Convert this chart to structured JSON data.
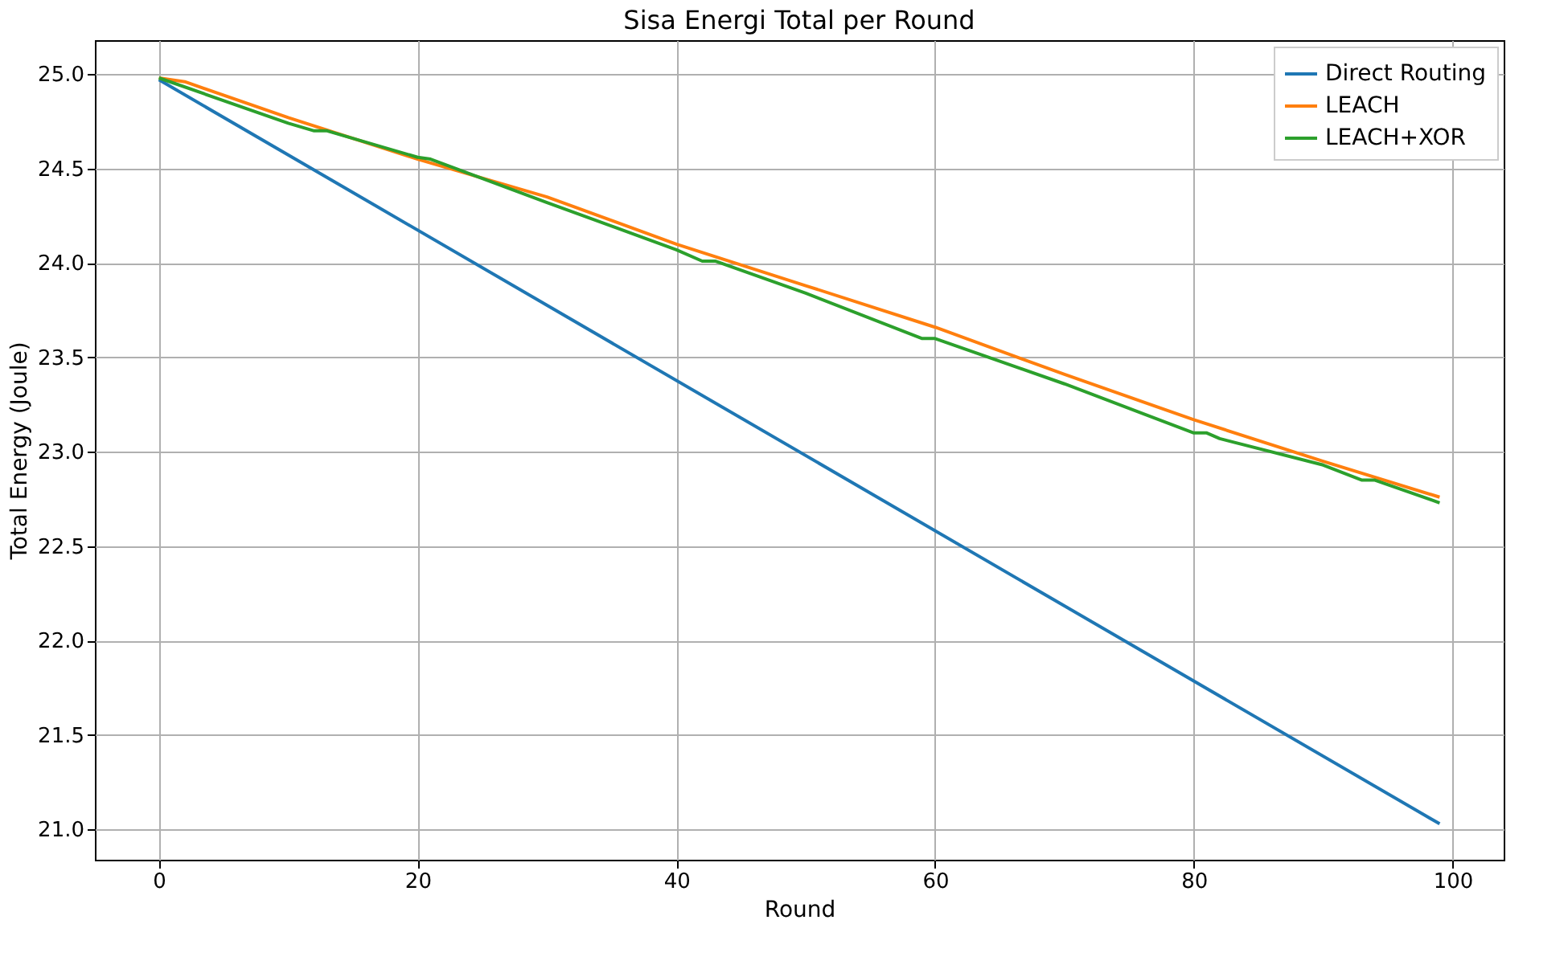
{
  "chart_data": {
    "type": "line",
    "title": "Sisa Energi Total per Round",
    "xlabel": "Round",
    "ylabel": "Total Energy (Joule)",
    "xlim": [
      -4.95,
      103.95
    ],
    "xticks": [
      0,
      20,
      40,
      60,
      80,
      100
    ],
    "ylim": [
      20.84,
      25.18
    ],
    "yticks": [
      {
        "value": 21,
        "label": "21.0"
      },
      {
        "value": 21.5,
        "label": "21.5"
      },
      {
        "value": 22,
        "label": "22.0"
      },
      {
        "value": 22.5,
        "label": "22.5"
      },
      {
        "value": 23,
        "label": "23.0"
      },
      {
        "value": 23.5,
        "label": "23.5"
      },
      {
        "value": 24,
        "label": "24.0"
      },
      {
        "value": 24.5,
        "label": "24.5"
      },
      {
        "value": 25,
        "label": "25.0"
      }
    ],
    "grid": true,
    "legend": "top right",
    "series": [
      {
        "name": "Direct Routing",
        "color": "#1f77b4",
        "x": [
          0,
          99
        ],
        "values": [
          24.97,
          21.03
        ]
      },
      {
        "name": "LEACH",
        "color": "#ff7f0e",
        "x": [
          0,
          2,
          10,
          20,
          30,
          40,
          50,
          60,
          70,
          80,
          90,
          99
        ],
        "values": [
          24.98,
          24.96,
          24.77,
          24.55,
          24.35,
          24.1,
          23.88,
          23.66,
          23.41,
          23.17,
          22.95,
          22.76
        ]
      },
      {
        "name": "LEACH+XOR",
        "color": "#2ca02c",
        "x": [
          0,
          10,
          12,
          13,
          20,
          21,
          30,
          40,
          42,
          43,
          50,
          59,
          60,
          70,
          80,
          81,
          82,
          90,
          93,
          94,
          99
        ],
        "values": [
          24.98,
          24.74,
          24.7,
          24.7,
          24.56,
          24.55,
          24.32,
          24.07,
          24.01,
          24.01,
          23.84,
          23.6,
          23.6,
          23.36,
          23.1,
          23.1,
          23.07,
          22.93,
          22.85,
          22.85,
          22.73
        ]
      }
    ]
  }
}
